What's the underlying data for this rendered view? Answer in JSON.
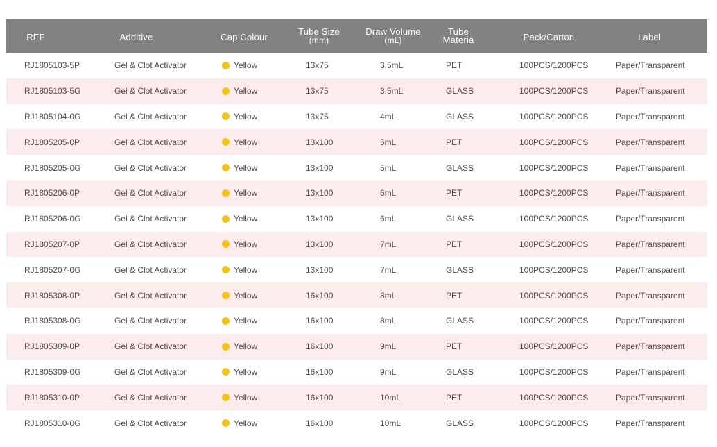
{
  "header": {
    "ref": "REF",
    "additive": "Additive",
    "cap_colour": "Cap Colour",
    "tube_size": "Tube Size",
    "tube_size_unit": "(mm)",
    "draw_volume": "Draw Volume",
    "draw_volume_unit": "(mL)",
    "tube_material_1": "Tube",
    "tube_material_2": "Materia",
    "pack_carton": "Pack/Carton",
    "label": "Label"
  },
  "colors": {
    "header_bg": "#828282",
    "alt_row_bg": "#fcecec",
    "yellow_dot": "#f4c21c"
  },
  "rows": [
    {
      "ref": "RJ1805103-5P",
      "additive": "Gel & Clot Activator",
      "cap": "Yellow",
      "size": "13x75",
      "draw": "3.5mL",
      "material": "PET",
      "pack": "100PCS/1200PCS",
      "label": "Paper/Transparent"
    },
    {
      "ref": "RJ1805103-5G",
      "additive": "Gel & Clot Activator",
      "cap": "Yellow",
      "size": "13x75",
      "draw": "3.5mL",
      "material": "GLASS",
      "pack": "100PCS/1200PCS",
      "label": "Paper/Transparent"
    },
    {
      "ref": "RJ1805104-0G",
      "additive": "Gel & Clot Activator",
      "cap": "Yellow",
      "size": "13x75",
      "draw": "4mL",
      "material": "GLASS",
      "pack": "100PCS/1200PCS",
      "label": "Paper/Transparent"
    },
    {
      "ref": "RJ1805205-0P",
      "additive": "Gel & Clot Activator",
      "cap": "Yellow",
      "size": "13x100",
      "draw": "5mL",
      "material": "PET",
      "pack": "100PCS/1200PCS",
      "label": "Paper/Transparent"
    },
    {
      "ref": "RJ1805205-0G",
      "additive": "Gel & Clot Activator",
      "cap": "Yellow",
      "size": "13x100",
      "draw": "5mL",
      "material": "GLASS",
      "pack": "100PCS/1200PCS",
      "label": "Paper/Transparent"
    },
    {
      "ref": "RJ1805206-0P",
      "additive": "Gel & Clot Activator",
      "cap": "Yellow",
      "size": "13x100",
      "draw": "6mL",
      "material": "PET",
      "pack": "100PCS/1200PCS",
      "label": "Paper/Transparent"
    },
    {
      "ref": "RJ1805206-0G",
      "additive": "Gel & Clot Activator",
      "cap": "Yellow",
      "size": "13x100",
      "draw": "6mL",
      "material": "GLASS",
      "pack": "100PCS/1200PCS",
      "label": "Paper/Transparent"
    },
    {
      "ref": "RJ1805207-0P",
      "additive": "Gel & Clot Activator",
      "cap": "Yellow",
      "size": "13x100",
      "draw": "7mL",
      "material": "PET",
      "pack": "100PCS/1200PCS",
      "label": "Paper/Transparent"
    },
    {
      "ref": "RJ1805207-0G",
      "additive": "Gel & Clot Activator",
      "cap": "Yellow",
      "size": "13x100",
      "draw": "7mL",
      "material": "GLASS",
      "pack": "100PCS/1200PCS",
      "label": "Paper/Transparent"
    },
    {
      "ref": "RJ1805308-0P",
      "additive": "Gel & Clot Activator",
      "cap": "Yellow",
      "size": "16x100",
      "draw": "8mL",
      "material": "PET",
      "pack": "100PCS/1200PCS",
      "label": "Paper/Transparent"
    },
    {
      "ref": "RJ1805308-0G",
      "additive": "Gel & Clot Activator",
      "cap": "Yellow",
      "size": "16x100",
      "draw": "8mL",
      "material": "GLASS",
      "pack": "100PCS/1200PCS",
      "label": "Paper/Transparent"
    },
    {
      "ref": "RJ1805309-0P",
      "additive": "Gel & Clot Activator",
      "cap": "Yellow",
      "size": "16x100",
      "draw": "9mL",
      "material": "PET",
      "pack": "100PCS/1200PCS",
      "label": "Paper/Transparent"
    },
    {
      "ref": "RJ1805309-0G",
      "additive": "Gel & Clot Activator",
      "cap": "Yellow",
      "size": "16x100",
      "draw": "9mL",
      "material": "GLASS",
      "pack": "100PCS/1200PCS",
      "label": "Paper/Transparent"
    },
    {
      "ref": "RJ1805310-0P",
      "additive": "Gel & Clot Activator",
      "cap": "Yellow",
      "size": "16x100",
      "draw": "10mL",
      "material": "PET",
      "pack": "100PCS/1200PCS",
      "label": "Paper/Transparent"
    },
    {
      "ref": "RJ1805310-0G",
      "additive": "Gel & Clot Activator",
      "cap": "Yellow",
      "size": "16x100",
      "draw": "10mL",
      "material": "GLASS",
      "pack": "100PCS/1200PCS",
      "label": "Paper/Transparent"
    }
  ]
}
